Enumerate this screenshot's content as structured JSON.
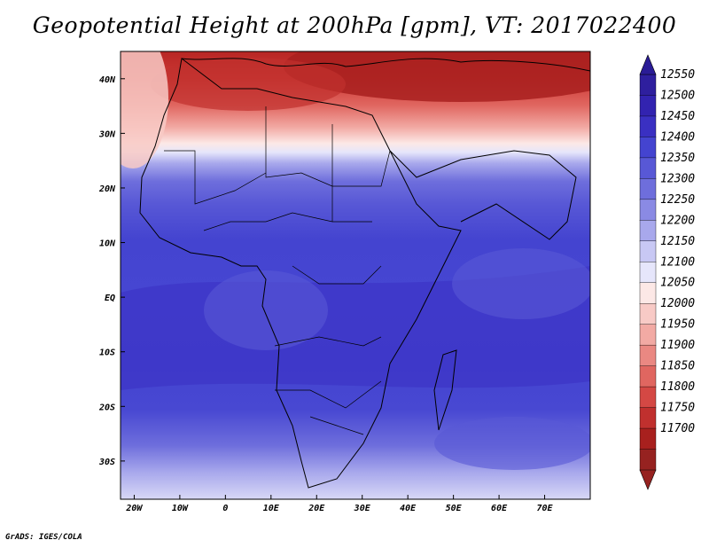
{
  "title": "Geopotential Height at 200hPa [gpm], VT: 2017022400",
  "credit": "GrADS: IGES/COLA",
  "map": {
    "variable": "Geopotential Height at 200hPa",
    "units": "gpm",
    "valid_time": "2017022400",
    "lon_range": [
      -23,
      80
    ],
    "lat_range": [
      -37,
      45
    ],
    "x_ticks": [
      "20W",
      "10W",
      "0",
      "10E",
      "20E",
      "30E",
      "40E",
      "50E",
      "60E",
      "70E"
    ],
    "x_tick_lons": [
      -20,
      -10,
      0,
      10,
      20,
      30,
      40,
      50,
      60,
      70
    ],
    "y_ticks": [
      "40N",
      "30N",
      "20N",
      "10N",
      "EQ",
      "10S",
      "20S",
      "30S"
    ],
    "y_tick_lats": [
      40,
      30,
      20,
      10,
      0,
      -10,
      -20,
      -30
    ]
  },
  "colorbar": {
    "levels": [
      "12550",
      "12500",
      "12450",
      "12400",
      "12350",
      "12300",
      "12250",
      "12200",
      "12150",
      "12100",
      "12050",
      "12000",
      "11950",
      "11900",
      "11850",
      "11800",
      "11750",
      "11700"
    ],
    "colors": [
      "#2e1f9e",
      "#3223b0",
      "#3a30c2",
      "#4444d0",
      "#5858d6",
      "#6e6edc",
      "#8a8ae4",
      "#a8a8ec",
      "#c8c8f4",
      "#e6e6fb",
      "#fce8e6",
      "#f8cac6",
      "#f2aaa4",
      "#ea8882",
      "#e06660",
      "#d44844",
      "#c0302e",
      "#a8201e",
      "#962220"
    ],
    "top_arrow_color": "#2a1c96",
    "bottom_arrow_color": "#962220"
  }
}
